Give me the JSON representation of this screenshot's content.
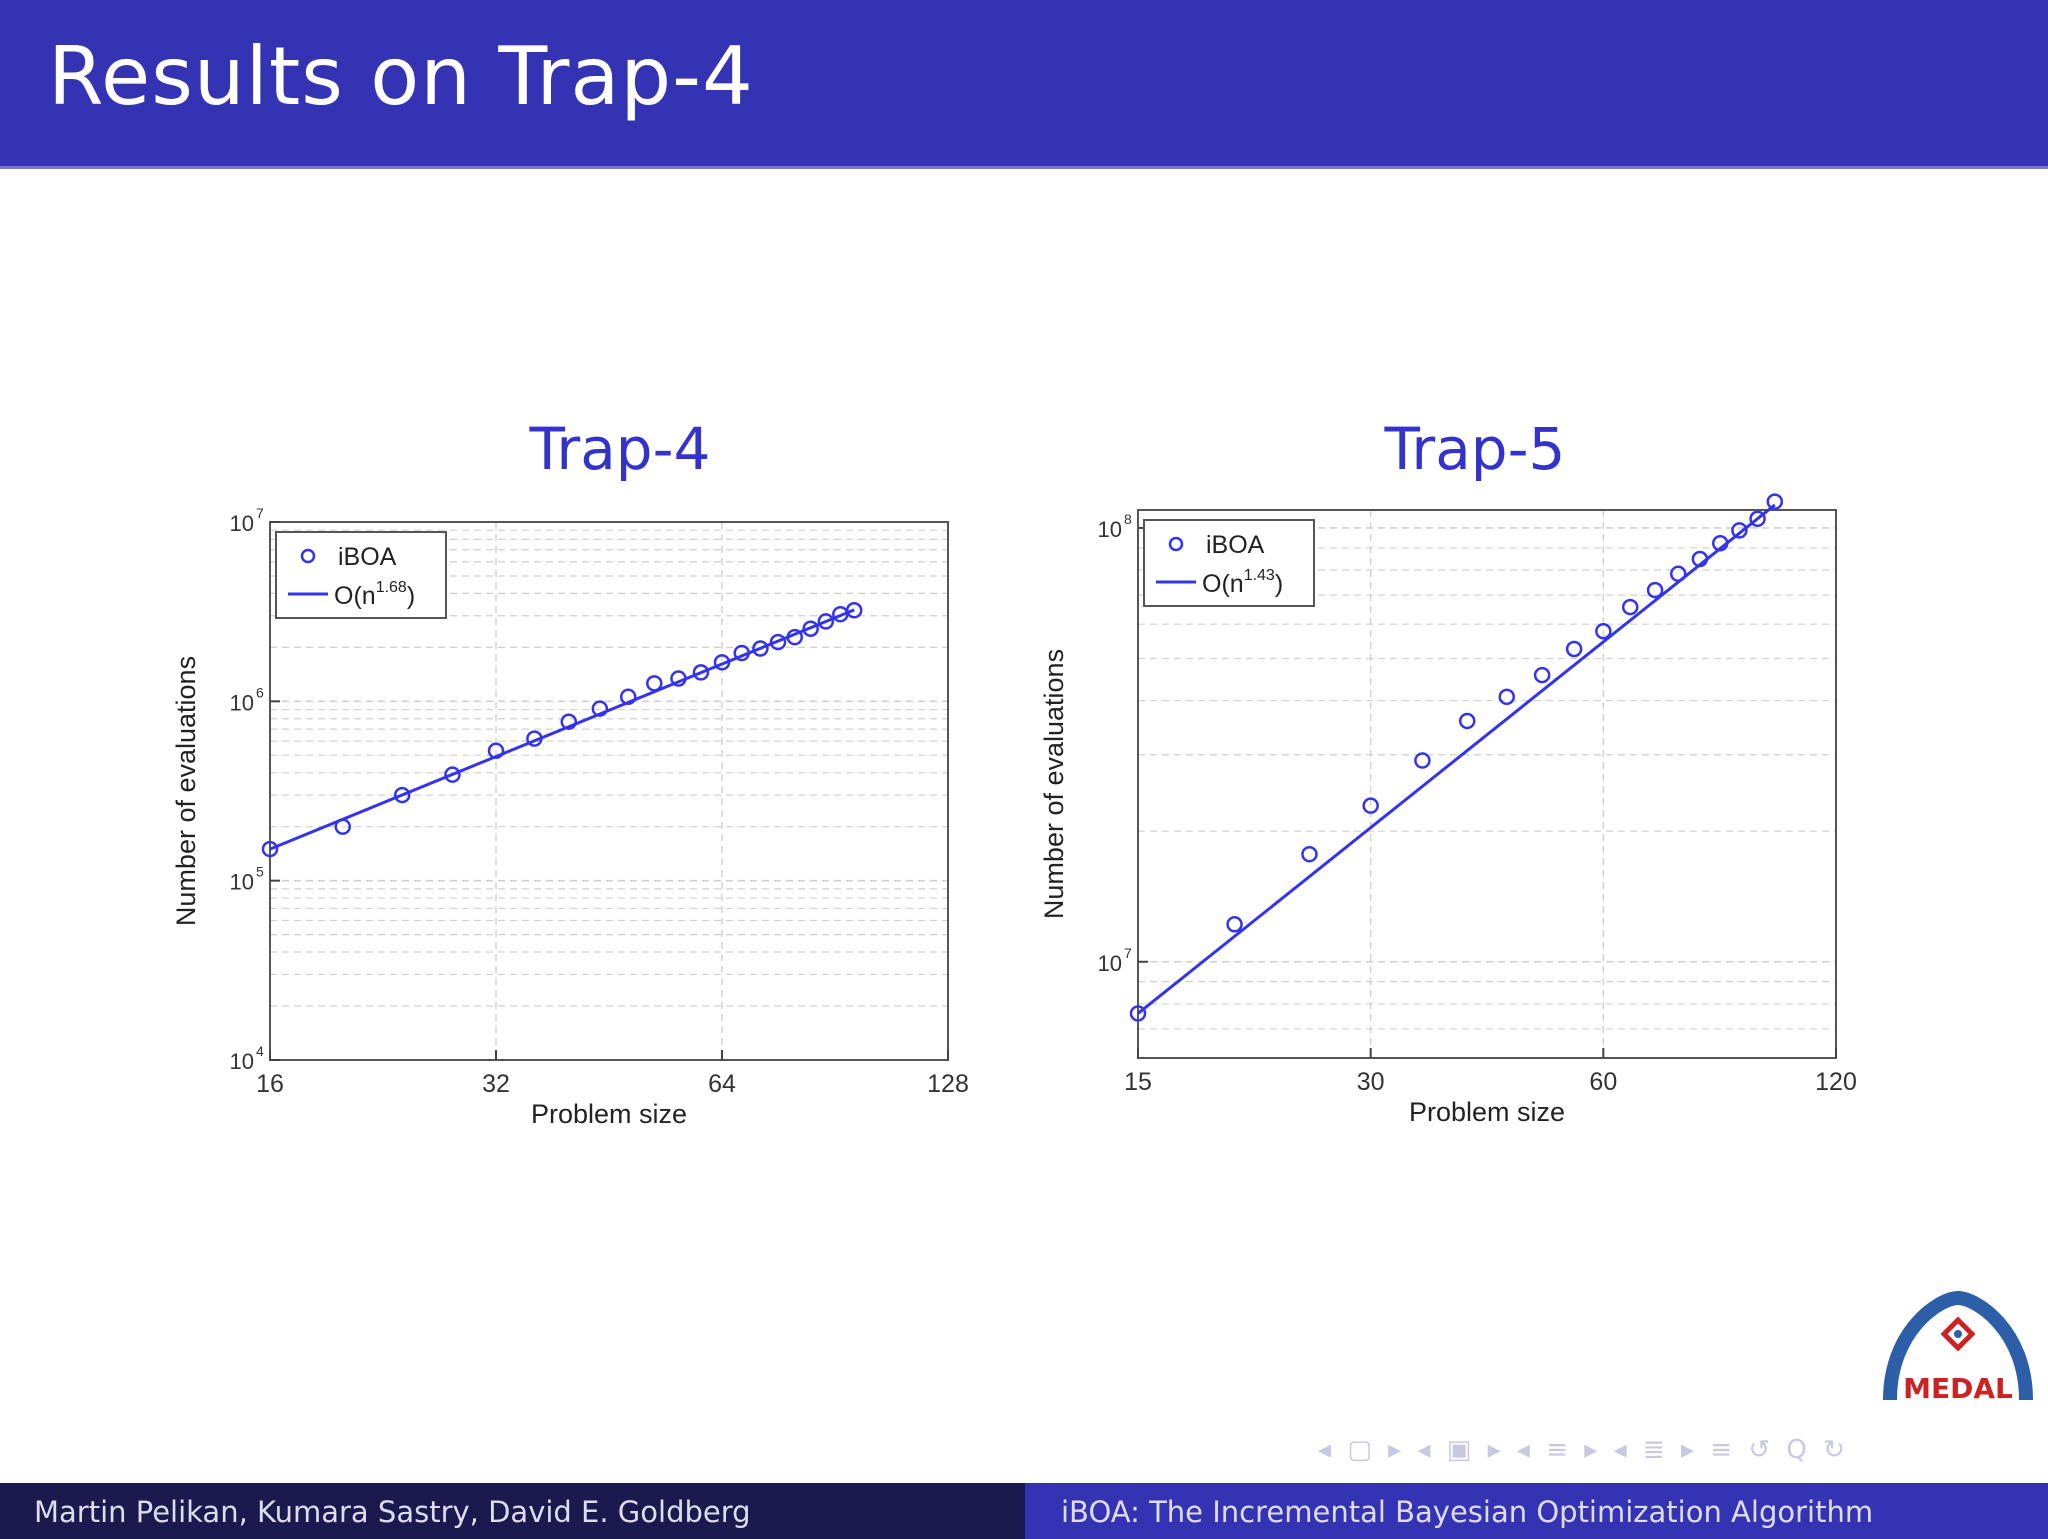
{
  "slide": {
    "title": "Results on Trap-4"
  },
  "chart_data": [
    {
      "type": "line",
      "title": "Trap-4",
      "xlabel": "Problem size",
      "ylabel": "Number of evaluations",
      "xscale": "log",
      "yscale": "log",
      "xlim": [
        16,
        128
      ],
      "ylim": [
        10000,
        10000000
      ],
      "x_ticks": [
        16,
        32,
        64,
        128
      ],
      "x_tick_labels": [
        "16",
        "32",
        "64",
        "128"
      ],
      "y_ticks": [
        10000,
        100000,
        1000000,
        10000000
      ],
      "y_tick_labels": [
        "10^4",
        "10^5",
        "10^6",
        "10^7"
      ],
      "grid": true,
      "legend_position": "top-left",
      "series": [
        {
          "name": "iBOA",
          "mode": "markers",
          "marker": "circle",
          "x": [
            16,
            20,
            24,
            28,
            32,
            36,
            40,
            44,
            48,
            52,
            56,
            60,
            64,
            68,
            72,
            76,
            80,
            84,
            88,
            92,
            96
          ],
          "y": [
            150000,
            200000,
            300000,
            390000,
            530000,
            620000,
            770000,
            910000,
            1060000,
            1260000,
            1340000,
            1450000,
            1650000,
            1860000,
            1970000,
            2140000,
            2280000,
            2540000,
            2790000,
            3060000,
            3220000
          ]
        },
        {
          "name": "O(n^1.68)",
          "mode": "line",
          "x": [
            16,
            96
          ],
          "y": [
            150000,
            3235000
          ]
        }
      ]
    },
    {
      "type": "line",
      "title": "Trap-5",
      "xlabel": "Problem size",
      "ylabel": "Number of evaluations",
      "xscale": "log",
      "yscale": "log",
      "xlim": [
        15,
        120
      ],
      "ylim": [
        6000000,
        110000000
      ],
      "x_ticks": [
        15,
        30,
        60,
        120
      ],
      "x_tick_labels": [
        "15",
        "30",
        "60",
        "120"
      ],
      "y_ticks": [
        10000000,
        100000000
      ],
      "y_tick_labels": [
        "10^7",
        "10^8"
      ],
      "grid": true,
      "legend_position": "top-left",
      "series": [
        {
          "name": "iBOA",
          "mode": "markers",
          "marker": "circle",
          "x": [
            15,
            20,
            25,
            30,
            35,
            40,
            45,
            50,
            55,
            60,
            65,
            70,
            75,
            80,
            85,
            90,
            95,
            100
          ],
          "y": [
            7600000,
            12200000,
            17700000,
            22900000,
            29100000,
            35900000,
            40800000,
            45800000,
            52600000,
            57800000,
            65700000,
            71900000,
            78400000,
            84800000,
            92200000,
            98700000,
            105000000,
            115000000
          ]
        },
        {
          "name": "O(n^1.43)",
          "mode": "line",
          "x": [
            15,
            100
          ],
          "y": [
            7600000,
            113000000
          ]
        }
      ]
    }
  ],
  "legend": {
    "chart1": {
      "markers": "iBOA",
      "fit_prefix": "O(n",
      "fit_exp": "1.68",
      "fit_suffix": ")"
    },
    "chart2": {
      "markers": "iBOA",
      "fit_prefix": "O(n",
      "fit_exp": "1.43",
      "fit_suffix": ")"
    }
  },
  "nav": {
    "controls": "◂ ▢ ▸  ◂ ▣ ▸  ◂ ≡ ▸  ◂ ≣ ▸   ≡   ↺ Q ↻"
  },
  "logo": {
    "text": "MEDAL"
  },
  "footer": {
    "authors": "Martin Pelikan, Kumara Sastry, David E. Goldberg",
    "title": "iBOA: The Incremental Bayesian Optimization Algorithm"
  },
  "colors": {
    "header": "#3333b3",
    "series": "#3333ee",
    "footer_left": "#1a1a4f",
    "footer_right": "#3333b3"
  }
}
